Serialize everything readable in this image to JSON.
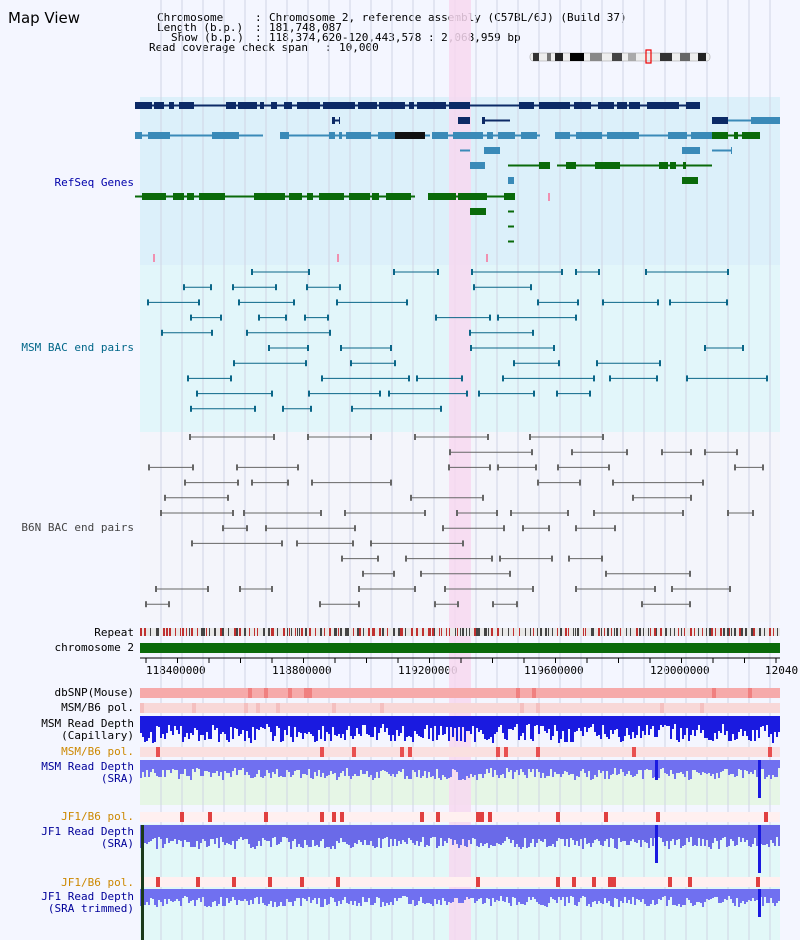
{
  "title": "Map View",
  "info": {
    "chromosome_label": "Chromosome",
    "chromosome_value": "Chromosome 2, reference assembly (C57BL/6J) (Build 37)",
    "length_label": "Length (b.p.)",
    "length_value": "181,748,087",
    "show_label": "Show (b.p.)",
    "show_value": "118,374,620-120,443,578 : 2,068,959 bp",
    "coverage_label": "Read coverage check span",
    "coverage_value": "10,000"
  },
  "tracks": {
    "refseq": "RefSeq Genes",
    "msm_bac": "MSM BAC end pairs",
    "b6n_bac": "B6N BAC end pairs",
    "repeat": "Repeat",
    "chromosome": "chromosome 2",
    "dbsnp": "dbSNP(Mouse)",
    "msm_b6_pol_1": "MSM/B6 pol.",
    "msm_read_depth_cap_1": "MSM Read Depth",
    "msm_read_depth_cap_2": "(Capillary)",
    "msm_b6_pol_2": "MSM/B6 pol.",
    "msm_read_depth_sra_1": "MSM Read Depth",
    "msm_read_depth_sra_2": "(SRA)",
    "jf1_b6_pol_1": "JF1/B6 pol.",
    "jf1_read_depth_1": "JF1 Read Depth",
    "jf1_read_depth_2": "(SRA)",
    "jf1_b6_pol_2": "JF1/B6 pol.",
    "jf1_read_depth_trim_1": "JF1 Read Depth",
    "jf1_read_depth_trim_2": "(SRA trimmed)"
  },
  "axis_ticks": [
    "118400000",
    "118800000",
    "119200000",
    "119600000",
    "120000000",
    "12040"
  ],
  "colors": {
    "refseq_label": "#0000aa",
    "msm_label": "#006688",
    "b6n_label": "#444444",
    "orange_label": "#cc8800",
    "blue_label": "#000099",
    "refseq_bg": "#dcf0fa",
    "msm_bg": "#e2f6fa",
    "highlight": "#f7d8f0",
    "gene_dark": "#0c2a66",
    "gene_mid": "#3a8ab8",
    "gene_green": "#0a6a0a",
    "chromosome_bar": "#0a6a0a"
  }
}
